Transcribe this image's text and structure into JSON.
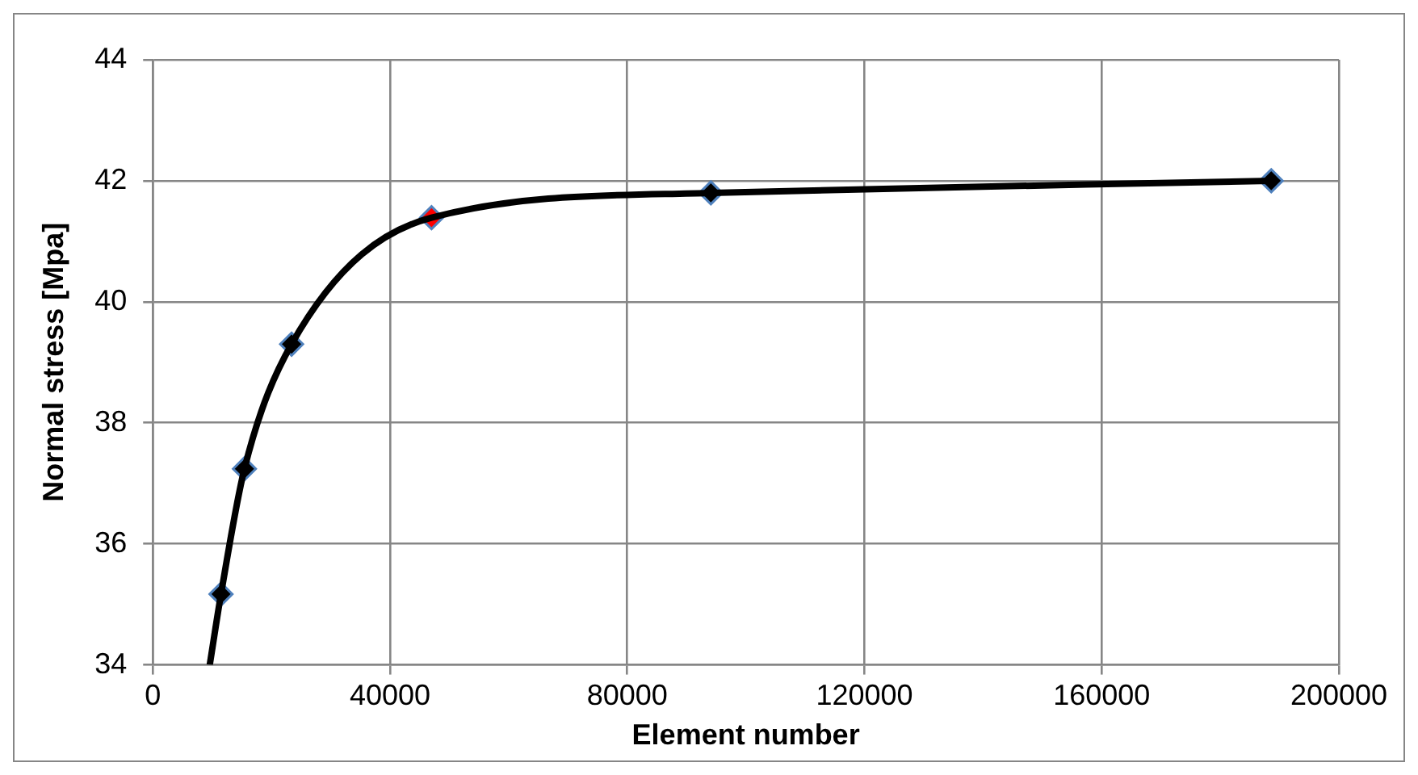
{
  "chart_data": {
    "type": "line",
    "xlabel": "Element number",
    "ylabel": "Normal stress [Mpa]",
    "xlim": [
      0,
      200000
    ],
    "xticks": [
      0,
      40000,
      80000,
      120000,
      160000,
      200000
    ],
    "ylim": [
      34,
      44
    ],
    "yticks": [
      34,
      36,
      38,
      40,
      42,
      44
    ],
    "grid": true,
    "legend": false,
    "series": [
      {
        "color": "#000000",
        "marker": "none",
        "x": [
          9600,
          11500,
          15450,
          23400,
          47000,
          94100,
          188600
        ],
        "values": [
          34,
          35.17,
          37.24,
          39.3,
          41.39,
          41.8,
          42.0
        ]
      },
      {
        "type": "scatter",
        "marker": "diamond",
        "colors": [
          "#000000",
          "#000000",
          "#000000",
          "#ff0000",
          "#000000",
          "#000000"
        ],
        "x": [
          11500,
          15450,
          23400,
          47000,
          94100,
          188600
        ],
        "values": [
          35.17,
          37.24,
          39.3,
          41.39,
          41.8,
          42.0
        ]
      }
    ]
  }
}
